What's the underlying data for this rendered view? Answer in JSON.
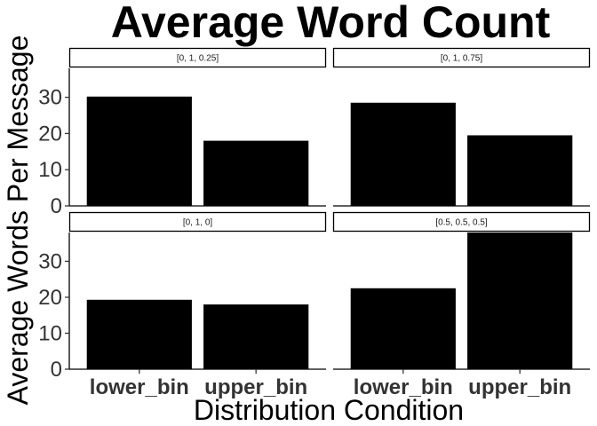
{
  "chart_data": {
    "type": "bar",
    "title": "Average Word Count",
    "xlabel": "Distribution Condition",
    "ylabel": "Average Words Per Message",
    "categories": [
      "lower_bin",
      "upper_bin"
    ],
    "ylim": [
      0,
      38
    ],
    "yticks": [
      0,
      10,
      20,
      30
    ],
    "bar_color": "#000000",
    "panels": [
      {
        "label": "[0, 1, 0.25]",
        "values": [
          30.2,
          18
        ]
      },
      {
        "label": "[0, 1, 0.75]",
        "values": [
          28.5,
          19.5
        ]
      },
      {
        "label": "[0, 1, 0]",
        "values": [
          19.3,
          18
        ]
      },
      {
        "label": "[0.5, 0.5, 0.5]",
        "values": [
          22.5,
          38
        ]
      }
    ],
    "grid": false,
    "legend": "none"
  }
}
